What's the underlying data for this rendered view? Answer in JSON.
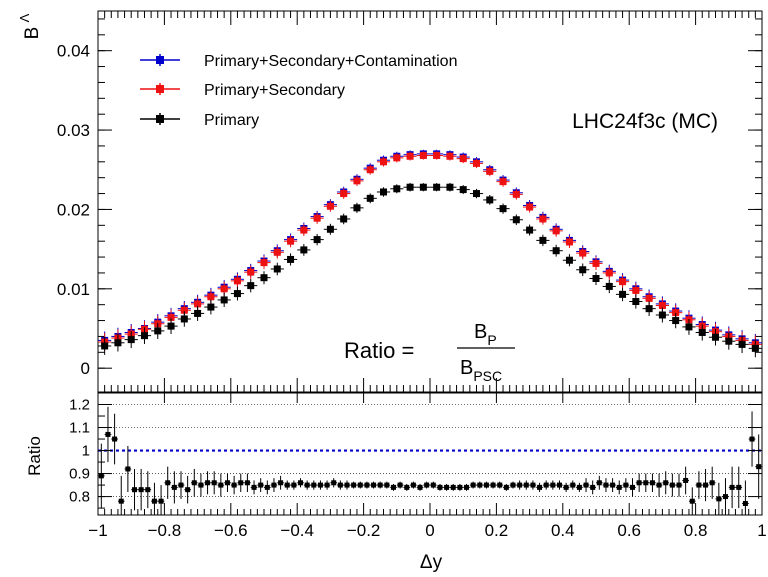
{
  "chart_data": [
    {
      "type": "scatter",
      "panel": "upper",
      "ylabel_main": "B",
      "ylabel_sup": "Λ",
      "xlim": [
        -1,
        1
      ],
      "ylim": [
        -0.003,
        0.045
      ],
      "y_ticks": [
        "0",
        "0.01",
        "0.02",
        "0.03",
        "0.04"
      ],
      "annotation": "LHC24f3c (MC)",
      "ratio_formula": {
        "prefix": "Ratio =",
        "num_main": "B",
        "num_sub": "P",
        "den_main": "B",
        "den_sub": "PSC"
      },
      "legend_position": "top-left",
      "x": [
        -0.98,
        -0.94,
        -0.9,
        -0.86,
        -0.82,
        -0.78,
        -0.74,
        -0.7,
        -0.66,
        -0.62,
        -0.58,
        -0.54,
        -0.5,
        -0.46,
        -0.42,
        -0.38,
        -0.34,
        -0.3,
        -0.26,
        -0.22,
        -0.18,
        -0.14,
        -0.1,
        -0.06,
        -0.02,
        0.02,
        0.06,
        0.1,
        0.14,
        0.18,
        0.22,
        0.26,
        0.3,
        0.34,
        0.38,
        0.42,
        0.46,
        0.5,
        0.54,
        0.58,
        0.62,
        0.66,
        0.7,
        0.74,
        0.78,
        0.82,
        0.86,
        0.9,
        0.94,
        0.98
      ],
      "series": [
        {
          "name": "Primary+Secondary+Contamination",
          "color": "#0000cc",
          "values": [
            0.0035,
            0.004,
            0.0045,
            0.005,
            0.0058,
            0.0066,
            0.0075,
            0.0083,
            0.0092,
            0.0102,
            0.0112,
            0.0123,
            0.0135,
            0.0148,
            0.0162,
            0.0176,
            0.0191,
            0.0206,
            0.0222,
            0.0238,
            0.0252,
            0.0262,
            0.0267,
            0.0269,
            0.027,
            0.027,
            0.0269,
            0.0266,
            0.026,
            0.025,
            0.0237,
            0.0221,
            0.0205,
            0.019,
            0.0175,
            0.0161,
            0.0147,
            0.0134,
            0.0122,
            0.0111,
            0.01,
            0.009,
            0.0081,
            0.0072,
            0.0063,
            0.0055,
            0.0048,
            0.0042,
            0.0037,
            0.0032
          ]
        },
        {
          "name": "Primary+Secondary",
          "color": "#ee1111",
          "values": [
            0.0033,
            0.0038,
            0.0043,
            0.0049,
            0.0056,
            0.0064,
            0.0073,
            0.0081,
            0.009,
            0.01,
            0.011,
            0.0121,
            0.0133,
            0.0146,
            0.016,
            0.0174,
            0.0189,
            0.0204,
            0.022,
            0.0236,
            0.025,
            0.026,
            0.0265,
            0.0267,
            0.0268,
            0.0268,
            0.0267,
            0.0264,
            0.0258,
            0.0248,
            0.0235,
            0.0219,
            0.0203,
            0.0188,
            0.0173,
            0.0159,
            0.0145,
            0.0132,
            0.012,
            0.0109,
            0.0098,
            0.0088,
            0.0079,
            0.007,
            0.0061,
            0.0053,
            0.0046,
            0.004,
            0.0035,
            0.003
          ]
        },
        {
          "name": "Primary",
          "color": "#000000",
          "values": [
            0.0028,
            0.0032,
            0.0036,
            0.0041,
            0.0047,
            0.0053,
            0.0062,
            0.0069,
            0.0077,
            0.0086,
            0.0094,
            0.0104,
            0.0114,
            0.0125,
            0.0137,
            0.0149,
            0.0162,
            0.0175,
            0.0188,
            0.0202,
            0.0214,
            0.0222,
            0.0226,
            0.0228,
            0.0228,
            0.0228,
            0.0228,
            0.0225,
            0.022,
            0.0212,
            0.0201,
            0.0187,
            0.0174,
            0.0161,
            0.0148,
            0.0136,
            0.0124,
            0.0113,
            0.0103,
            0.0093,
            0.0084,
            0.0075,
            0.0067,
            0.006,
            0.0052,
            0.0045,
            0.0039,
            0.0034,
            0.003,
            0.0025
          ]
        }
      ]
    },
    {
      "type": "scatter",
      "panel": "lower",
      "xlabel": "Δy",
      "ylabel": "Ratio",
      "xlim": [
        -1,
        1
      ],
      "ylim": [
        0.72,
        1.25
      ],
      "y_ticks": [
        "0.8",
        "0.9",
        "1",
        "1.1",
        "1.2"
      ],
      "x_ticks": [
        "−1",
        "−0.8",
        "−0.6",
        "−0.4",
        "−0.2",
        "0",
        "0.2",
        "0.4",
        "0.6",
        "0.8",
        "1"
      ],
      "reference_line": 1,
      "reference_color": "#0000cc",
      "grid_y": [
        0.8,
        0.9,
        1.1,
        1.2
      ],
      "x": [
        -0.99,
        -0.97,
        -0.95,
        -0.93,
        -0.91,
        -0.89,
        -0.87,
        -0.85,
        -0.83,
        -0.81,
        -0.79,
        -0.77,
        -0.75,
        -0.73,
        -0.71,
        -0.69,
        -0.67,
        -0.65,
        -0.63,
        -0.61,
        -0.59,
        -0.57,
        -0.55,
        -0.53,
        -0.51,
        -0.49,
        -0.47,
        -0.45,
        -0.43,
        -0.41,
        -0.39,
        -0.37,
        -0.35,
        -0.33,
        -0.31,
        -0.29,
        -0.27,
        -0.25,
        -0.23,
        -0.21,
        -0.19,
        -0.17,
        -0.15,
        -0.13,
        -0.11,
        -0.09,
        -0.07,
        -0.05,
        -0.03,
        -0.01,
        0.01,
        0.03,
        0.05,
        0.07,
        0.09,
        0.11,
        0.13,
        0.15,
        0.17,
        0.19,
        0.21,
        0.23,
        0.25,
        0.27,
        0.29,
        0.31,
        0.33,
        0.35,
        0.37,
        0.39,
        0.41,
        0.43,
        0.45,
        0.47,
        0.49,
        0.51,
        0.53,
        0.55,
        0.57,
        0.59,
        0.61,
        0.63,
        0.65,
        0.67,
        0.69,
        0.71,
        0.73,
        0.75,
        0.77,
        0.79,
        0.81,
        0.83,
        0.85,
        0.87,
        0.89,
        0.91,
        0.93,
        0.95,
        0.97,
        0.99
      ],
      "values": [
        0.89,
        1.07,
        1.05,
        0.78,
        0.92,
        0.83,
        0.83,
        0.83,
        0.78,
        0.78,
        0.86,
        0.84,
        0.85,
        0.83,
        0.86,
        0.85,
        0.86,
        0.86,
        0.85,
        0.86,
        0.85,
        0.86,
        0.86,
        0.84,
        0.85,
        0.84,
        0.85,
        0.86,
        0.85,
        0.85,
        0.86,
        0.85,
        0.85,
        0.85,
        0.85,
        0.86,
        0.85,
        0.85,
        0.85,
        0.85,
        0.85,
        0.85,
        0.85,
        0.85,
        0.84,
        0.85,
        0.84,
        0.85,
        0.84,
        0.85,
        0.85,
        0.84,
        0.84,
        0.84,
        0.84,
        0.84,
        0.85,
        0.85,
        0.85,
        0.85,
        0.85,
        0.84,
        0.85,
        0.85,
        0.85,
        0.85,
        0.84,
        0.85,
        0.85,
        0.85,
        0.84,
        0.85,
        0.84,
        0.85,
        0.84,
        0.86,
        0.85,
        0.85,
        0.84,
        0.85,
        0.84,
        0.86,
        0.86,
        0.86,
        0.85,
        0.86,
        0.85,
        0.85,
        0.87,
        0.78,
        0.85,
        0.85,
        0.86,
        0.79,
        0.8,
        0.84,
        0.84,
        0.77,
        1.05,
        0.93
      ],
      "errors": [
        0.14,
        0.12,
        0.11,
        0.11,
        0.1,
        0.09,
        0.09,
        0.08,
        0.08,
        0.07,
        0.07,
        0.07,
        0.06,
        0.06,
        0.06,
        0.05,
        0.05,
        0.05,
        0.05,
        0.04,
        0.04,
        0.04,
        0.04,
        0.03,
        0.03,
        0.03,
        0.03,
        0.03,
        0.02,
        0.02,
        0.02,
        0.02,
        0.02,
        0.02,
        0.02,
        0.02,
        0.02,
        0.02,
        0.015,
        0.015,
        0.015,
        0.015,
        0.015,
        0.015,
        0.015,
        0.015,
        0.015,
        0.015,
        0.015,
        0.015,
        0.015,
        0.015,
        0.015,
        0.015,
        0.015,
        0.015,
        0.015,
        0.015,
        0.015,
        0.015,
        0.015,
        0.015,
        0.015,
        0.02,
        0.02,
        0.02,
        0.02,
        0.02,
        0.02,
        0.02,
        0.02,
        0.02,
        0.02,
        0.03,
        0.03,
        0.03,
        0.03,
        0.03,
        0.03,
        0.03,
        0.04,
        0.04,
        0.04,
        0.04,
        0.05,
        0.05,
        0.05,
        0.05,
        0.06,
        0.06,
        0.06,
        0.07,
        0.07,
        0.07,
        0.08,
        0.09,
        0.09,
        0.1,
        0.12,
        0.14
      ]
    }
  ]
}
